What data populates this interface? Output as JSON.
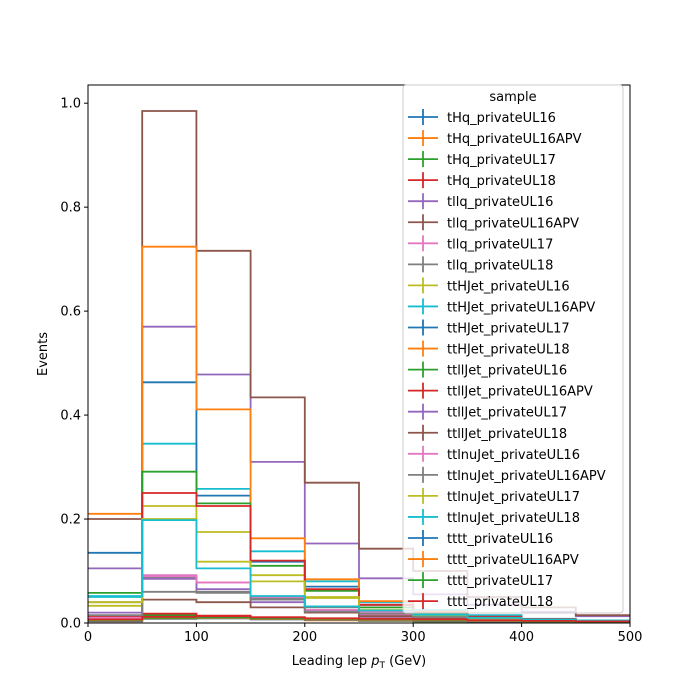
{
  "chart_data": {
    "type": "histogram",
    "title": "",
    "xlabel": "Leading lep",
    "xlabel_sym": "p",
    "xlabel_sub": "T",
    "xlabel_unit": " (GeV)",
    "ylabel": "Events",
    "xlim": [
      0,
      500
    ],
    "ylim": [
      0,
      1.035
    ],
    "xticks": [
      0,
      100,
      200,
      300,
      400,
      500
    ],
    "yticks": [
      0.0,
      0.2,
      0.4,
      0.6,
      0.8,
      1.0
    ],
    "xtick_labels": [
      "0",
      "100",
      "200",
      "300",
      "400",
      "500"
    ],
    "ytick_labels": [
      "0.0",
      "0.2",
      "0.4",
      "0.6",
      "0.8",
      "1.0"
    ],
    "bin_edges": [
      0,
      50,
      100,
      150,
      200,
      250,
      300,
      350,
      400,
      450,
      500
    ],
    "legend": {
      "title": "sample",
      "position": "upper right"
    },
    "series": [
      {
        "name": "tHq_privateUL16",
        "color": "#1f77b4",
        "values": [
          0.008,
          0.012,
          0.01,
          0.008,
          0.006,
          0.004,
          0.003,
          0.002,
          0.002,
          0.001
        ]
      },
      {
        "name": "tHq_privateUL16APV",
        "color": "#ff7f0e",
        "values": [
          0.007,
          0.011,
          0.009,
          0.007,
          0.005,
          0.004,
          0.003,
          0.002,
          0.001,
          0.001
        ]
      },
      {
        "name": "tHq_privateUL17",
        "color": "#2ca02c",
        "values": [
          0.01,
          0.015,
          0.012,
          0.009,
          0.007,
          0.005,
          0.003,
          0.002,
          0.002,
          0.001
        ]
      },
      {
        "name": "tHq_privateUL18",
        "color": "#d62728",
        "values": [
          0.012,
          0.018,
          0.014,
          0.011,
          0.008,
          0.006,
          0.004,
          0.003,
          0.002,
          0.001
        ]
      },
      {
        "name": "tllq_privateUL16",
        "color": "#9467bd",
        "values": [
          0.105,
          0.57,
          0.478,
          0.31,
          0.153,
          0.086,
          0.055,
          0.035,
          0.022,
          0.013
        ]
      },
      {
        "name": "tllq_privateUL16APV",
        "color": "#8c564b",
        "values": [
          0.2,
          0.985,
          0.716,
          0.434,
          0.27,
          0.143,
          0.1,
          0.05,
          0.03,
          0.015
        ]
      },
      {
        "name": "tllq_privateUL17",
        "color": "#e377c2",
        "values": [
          0.008,
          0.092,
          0.078,
          0.045,
          0.025,
          0.015,
          0.01,
          0.006,
          0.004,
          0.002
        ]
      },
      {
        "name": "tllq_privateUL18",
        "color": "#7f7f7f",
        "values": [
          0.04,
          0.088,
          0.06,
          0.048,
          0.03,
          0.018,
          0.012,
          0.007,
          0.004,
          0.003
        ]
      },
      {
        "name": "ttHJet_privateUL16",
        "color": "#bcbd22",
        "values": [
          0.033,
          0.225,
          0.175,
          0.092,
          0.048,
          0.03,
          0.018,
          0.01,
          0.006,
          0.004
        ]
      },
      {
        "name": "ttHJet_privateUL16APV",
        "color": "#17becf",
        "values": [
          0.05,
          0.345,
          0.258,
          0.138,
          0.08,
          0.04,
          0.025,
          0.015,
          0.008,
          0.005
        ]
      },
      {
        "name": "ttHJet_privateUL17",
        "color": "#1f77b4",
        "values": [
          0.135,
          0.463,
          0.245,
          0.118,
          0.07,
          0.035,
          0.02,
          0.012,
          0.007,
          0.004
        ]
      },
      {
        "name": "ttHJet_privateUL18",
        "color": "#ff7f0e",
        "values": [
          0.21,
          0.724,
          0.411,
          0.163,
          0.084,
          0.042,
          0.022,
          0.012,
          0.006,
          0.004
        ]
      },
      {
        "name": "ttllJet_privateUL16",
        "color": "#2ca02c",
        "values": [
          0.058,
          0.291,
          0.23,
          0.11,
          0.062,
          0.03,
          0.018,
          0.01,
          0.006,
          0.003
        ]
      },
      {
        "name": "ttllJet_privateUL16APV",
        "color": "#d62728",
        "values": [
          0.005,
          0.25,
          0.225,
          0.12,
          0.065,
          0.035,
          0.02,
          0.012,
          0.007,
          0.004
        ]
      },
      {
        "name": "ttllJet_privateUL17",
        "color": "#9467bd",
        "values": [
          0.02,
          0.085,
          0.065,
          0.04,
          0.022,
          0.012,
          0.008,
          0.005,
          0.003,
          0.002
        ]
      },
      {
        "name": "ttllJet_privateUL18",
        "color": "#8c564b",
        "values": [
          0.003,
          0.045,
          0.04,
          0.03,
          0.02,
          0.013,
          0.008,
          0.005,
          0.003,
          0.002
        ]
      },
      {
        "name": "ttlnuJet_privateUL16",
        "color": "#e377c2",
        "values": [
          0.01,
          0.09,
          0.078,
          0.05,
          0.025,
          0.022,
          0.015,
          0.008,
          0.005,
          0.003
        ]
      },
      {
        "name": "ttlnuJet_privateUL16APV",
        "color": "#7f7f7f",
        "values": [
          0.015,
          0.06,
          0.058,
          0.045,
          0.022,
          0.018,
          0.012,
          0.007,
          0.004,
          0.002
        ]
      },
      {
        "name": "ttlnuJet_privateUL17",
        "color": "#bcbd22",
        "values": [
          0.04,
          0.2,
          0.118,
          0.08,
          0.05,
          0.025,
          0.015,
          0.009,
          0.005,
          0.003
        ]
      },
      {
        "name": "ttlnuJet_privateUL18",
        "color": "#17becf",
        "values": [
          0.052,
          0.198,
          0.105,
          0.052,
          0.032,
          0.024,
          0.016,
          0.01,
          0.006,
          0.004
        ]
      },
      {
        "name": "tttt_privateUL16",
        "color": "#1f77b4",
        "values": [
          0.004,
          0.008,
          0.009,
          0.007,
          0.006,
          0.005,
          0.004,
          0.003,
          0.002,
          0.002
        ]
      },
      {
        "name": "tttt_privateUL16APV",
        "color": "#ff7f0e",
        "values": [
          0.005,
          0.009,
          0.01,
          0.008,
          0.007,
          0.006,
          0.005,
          0.004,
          0.003,
          0.002
        ]
      },
      {
        "name": "tttt_privateUL17",
        "color": "#2ca02c",
        "values": [
          0.006,
          0.01,
          0.011,
          0.009,
          0.008,
          0.007,
          0.006,
          0.005,
          0.003,
          0.002
        ]
      },
      {
        "name": "tttt_privateUL18",
        "color": "#d62728",
        "values": [
          0.007,
          0.012,
          0.013,
          0.011,
          0.009,
          0.008,
          0.007,
          0.005,
          0.004,
          0.003
        ]
      }
    ]
  }
}
